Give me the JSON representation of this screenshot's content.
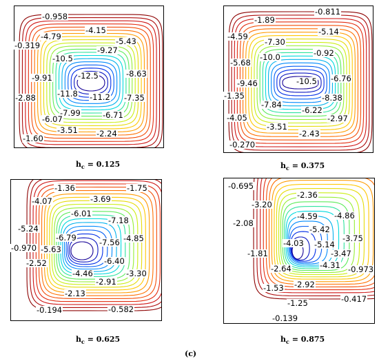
{
  "figure_label": "(c)",
  "chart_data": [
    {
      "type": "contour",
      "caption_var": "h",
      "caption_sub": "c",
      "caption_value": " = 0.125",
      "labels": [
        "-0.958",
        "-4.15",
        "-4.79",
        "-5.43",
        "-0.319",
        "-9.27",
        "-10.5",
        "-12.5",
        "-9.91",
        "-8.63",
        "-2.88",
        "-11.8",
        "-11.2",
        "-7.35",
        "-7.99",
        "-6.71",
        "-6.07",
        "-3.51",
        "-2.24",
        "-1.60"
      ]
    },
    {
      "type": "contour",
      "caption_var": "h",
      "caption_sub": "c",
      "caption_value": " = 0.375",
      "labels": [
        "-0.811",
        "-1.89",
        "-4.59",
        "-5.14",
        "-7.30",
        "-5.68",
        "-10.0",
        "-0.92",
        "-9.46",
        "-10.5",
        "-6.76",
        "-1.35",
        "-8.38",
        "-7.84",
        "-6.22",
        "-4.05",
        "-2.97",
        "-3.51",
        "-2.43",
        "-0.270"
      ]
    },
    {
      "type": "contour",
      "caption_var": "h",
      "caption_sub": "c",
      "caption_value": " = 0.625",
      "labels": [
        "-1.36",
        "-1.75",
        "-4.07",
        "-3.69",
        "-6.01",
        "-7.18",
        "-5.24",
        "-6.79",
        "-4.85",
        "-7.56",
        "-0.970",
        "-5.63",
        "-6.40",
        "-2.52",
        "-4.46",
        "-3.30",
        "-2.91",
        "-2.13",
        "-0.194",
        "-0.582"
      ]
    },
    {
      "type": "contour",
      "caption_var": "h",
      "caption_sub": "c",
      "caption_value": " = 0.875",
      "labels": [
        "-0.695",
        "-2.36",
        "-3.20",
        "-4.59",
        "-4.86",
        "-2.08",
        "-5.42",
        "-3.75",
        "-4.03",
        "-5.14",
        "-1.81",
        "-3.47",
        "-0.973",
        "-4.31",
        "-2.64",
        "-2.92",
        "-1.53",
        "-0.417",
        "-1.25",
        "-0.139"
      ]
    }
  ]
}
